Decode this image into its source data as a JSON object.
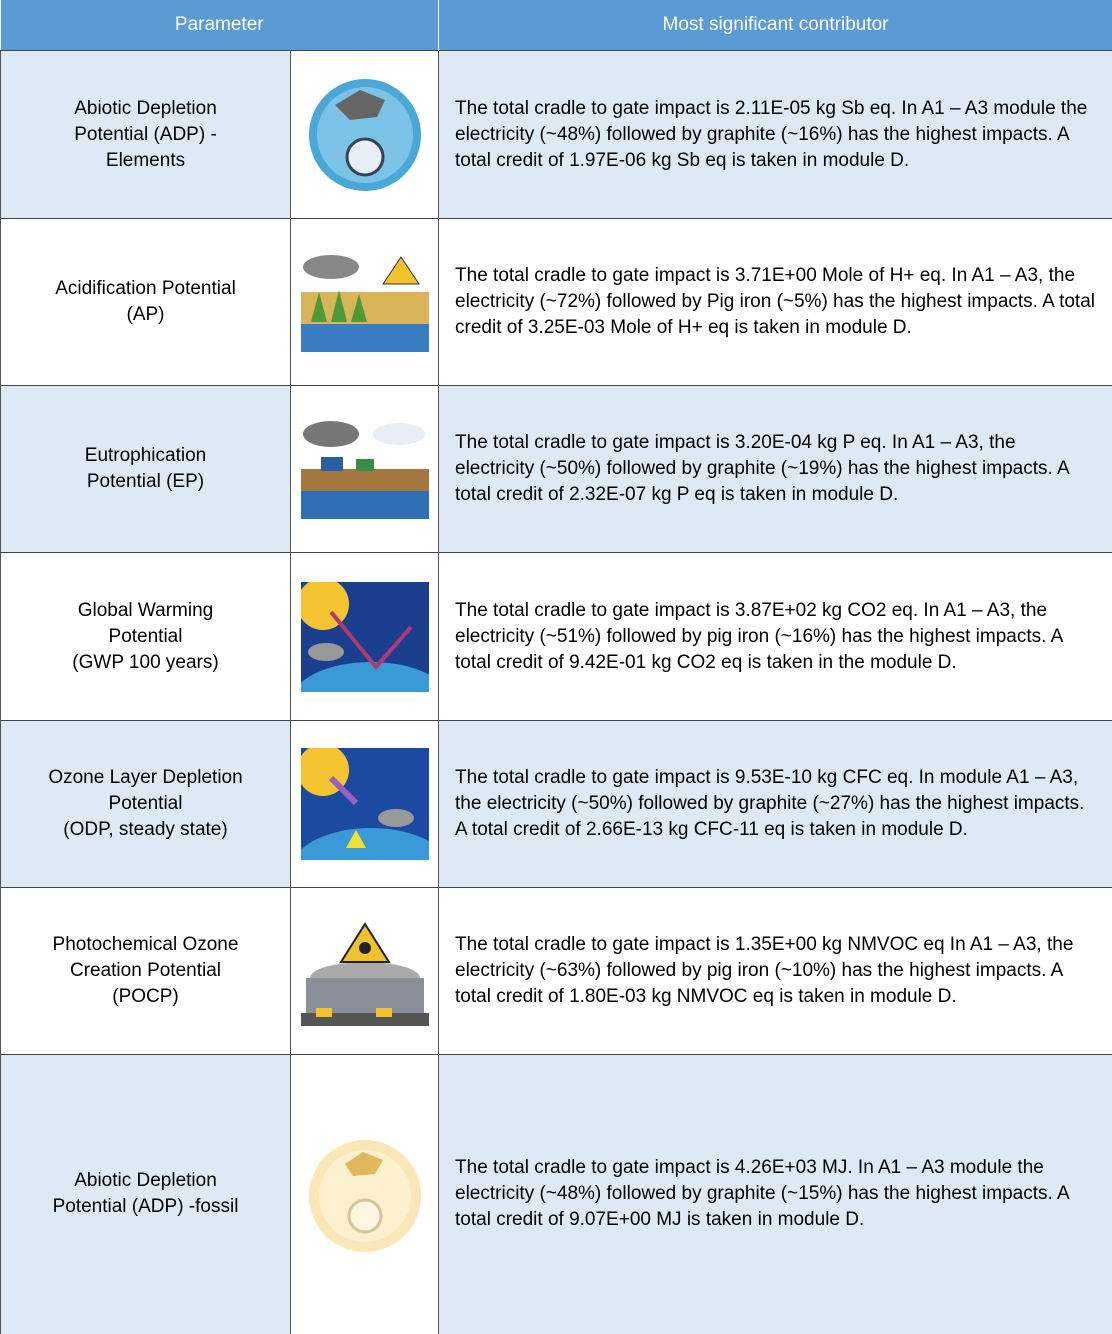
{
  "header": {
    "columns": [
      "Parameter",
      "Most significant contributor"
    ]
  },
  "table": {
    "rows": [
      {
        "parameter": "Abiotic Depletion\nPotential (ADP) -\nElements",
        "description": "The total cradle to gate impact is 2.11E-05 kg Sb eq. In A1 – A3 module the electricity (~48%) followed by graphite (~16%) has the highest impacts. A total credit of 1.97E-06 kg Sb eq is taken in module D."
      },
      {
        "parameter": "Acidification Potential\n(AP)",
        "description": "The total cradle to gate impact is 3.71E+00 Mole of H+ eq. In A1 – A3, the electricity (~72%) followed by Pig iron (~5%) has the highest impacts. A total credit of 3.25E-03 Mole of H+ eq is taken in module D."
      },
      {
        "parameter": "Eutrophication\nPotential (EP)",
        "description": "The total cradle to gate impact is 3.20E-04 kg P eq. In A1 – A3, the electricity (~50%) followed by graphite (~19%) has the highest impacts. A total credit of 2.32E-07 kg P eq is taken in module D."
      },
      {
        "parameter": "Global Warming\nPotential\n(GWP 100 years)",
        "description": "The total cradle to gate impact is 3.87E+02 kg CO2 eq. In A1 – A3, the electricity (~51%) followed by pig iron (~16%) has the highest impacts. A total credit of 9.42E-01 kg CO2 eq is taken in the module D."
      },
      {
        "parameter": "Ozone Layer Depletion\nPotential\n(ODP, steady state)",
        "description": "The total cradle to gate impact is 9.53E-10 kg CFC eq. In module A1 – A3, the electricity (~50%) followed by graphite (~27%) has the highest impacts. A total credit of 2.66E-13 kg CFC-11 eq is taken in module D."
      },
      {
        "parameter": "Photochemical Ozone\nCreation Potential\n(POCP)",
        "description": "The total cradle to gate impact is 1.35E+00 kg NMVOC eq In A1 – A3, the electricity (~63%) followed by pig iron (~10%) has the highest impacts. A total credit of 1.80E-03 kg NMVOC eq is taken in module D."
      },
      {
        "parameter": "Abiotic Depletion\nPotential (ADP) -fossil",
        "description": "The total cradle to gate impact is 4.26E+03 MJ. In A1 – A3 module the electricity (~48%) followed by graphite (~15%) has the highest impacts. A total credit of 9.07E+00 MJ is taken in module D."
      }
    ]
  }
}
